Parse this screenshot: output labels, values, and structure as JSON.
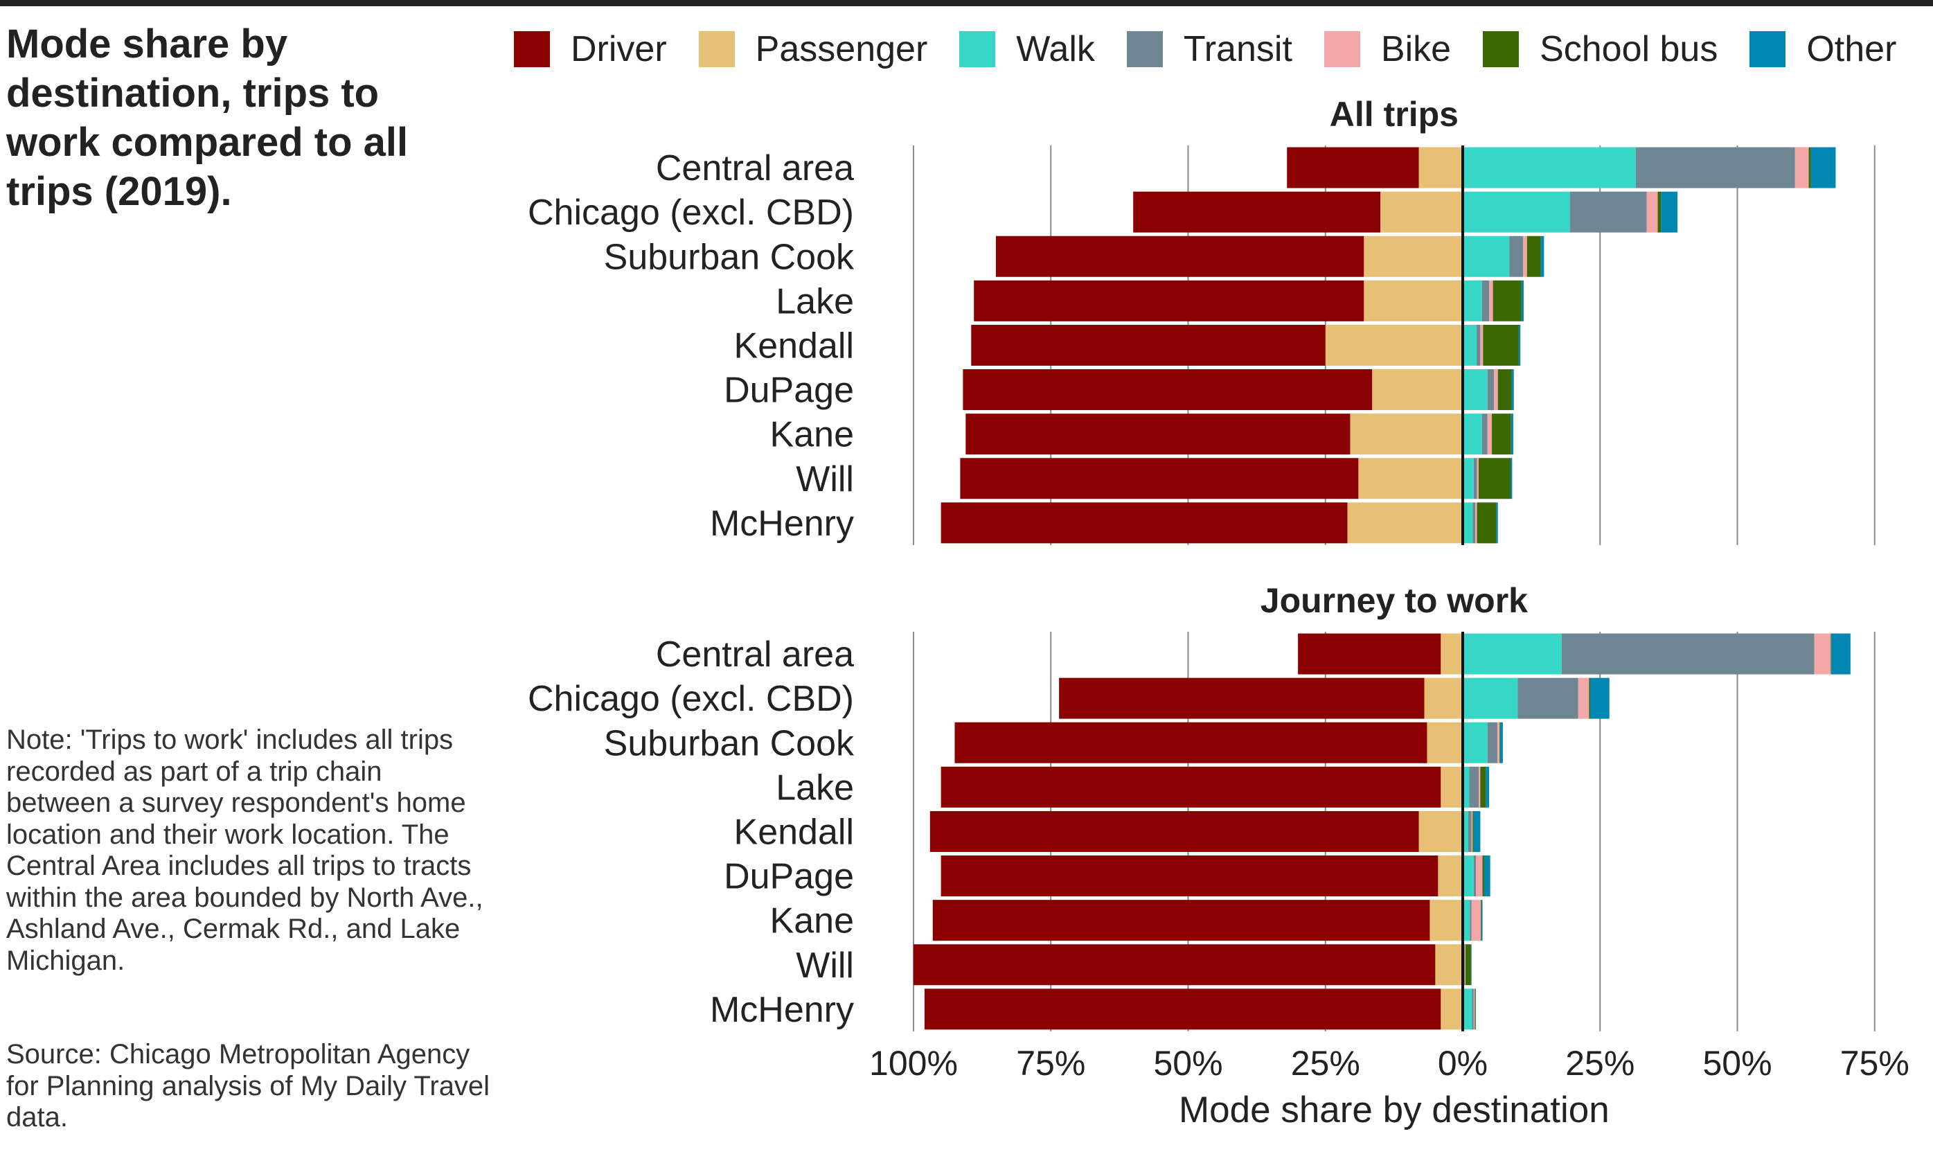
{
  "title": "Mode share by destination, trips to work compared to all trips (2019).",
  "note": "Note: 'Trips to work' includes all trips recorded as part of a trip chain between a survey respondent's home location and their work location. The Central Area includes all trips to tracts within the area bounded by North Ave., Ashland Ave., Cermak Rd., and Lake Michigan.",
  "source": "Source: Chicago Metropolitan Agency for Planning analysis of My Daily Travel data.",
  "chart_data": {
    "type": "bar",
    "orientation": "horizontal-diverging",
    "xlabel": "Mode share by destination",
    "xlim": [
      -1.0,
      0.75
    ],
    "xticks": [
      -1.0,
      -0.75,
      -0.5,
      -0.25,
      0,
      0.25,
      0.5,
      0.75
    ],
    "xtick_labels": [
      "100%",
      "75%",
      "50%",
      "25%",
      "0%",
      "25%",
      "50%",
      "75%"
    ],
    "grid": "vertical",
    "legend_position": "top",
    "categories": [
      "Central area",
      "Chicago (excl. CBD)",
      "Suburban Cook",
      "Lake",
      "Kendall",
      "DuPage",
      "Kane",
      "Will",
      "McHenry"
    ],
    "series": [
      {
        "name": "Driver",
        "color": "#8b0000",
        "side": "left"
      },
      {
        "name": "Passenger",
        "color": "#e7c075",
        "side": "left"
      },
      {
        "name": "Walk",
        "color": "#36d7c7",
        "side": "right"
      },
      {
        "name": "Transit",
        "color": "#6f8793",
        "side": "right"
      },
      {
        "name": "Bike",
        "color": "#f3a7a7",
        "side": "right"
      },
      {
        "name": "School bus",
        "color": "#3a6904",
        "side": "right"
      },
      {
        "name": "Other",
        "color": "#0087b1",
        "side": "right"
      }
    ],
    "panels": [
      {
        "title": "All trips",
        "values": {
          "Driver": [
            0.24,
            0.45,
            0.67,
            0.71,
            0.645,
            0.745,
            0.7,
            0.725,
            0.74
          ],
          "Passenger": [
            0.08,
            0.15,
            0.18,
            0.18,
            0.25,
            0.165,
            0.205,
            0.19,
            0.21
          ],
          "Walk": [
            0.315,
            0.195,
            0.085,
            0.035,
            0.025,
            0.045,
            0.035,
            0.02,
            0.018
          ],
          "Transit": [
            0.29,
            0.14,
            0.025,
            0.013,
            0.007,
            0.012,
            0.01,
            0.006,
            0.005
          ],
          "Bike": [
            0.025,
            0.02,
            0.007,
            0.007,
            0.005,
            0.007,
            0.008,
            0.003,
            0.003
          ],
          "School bus": [
            0.004,
            0.006,
            0.025,
            0.052,
            0.065,
            0.025,
            0.035,
            0.058,
            0.035
          ],
          "Other": [
            0.045,
            0.03,
            0.006,
            0.004,
            0.003,
            0.004,
            0.004,
            0.003,
            0.003
          ]
        }
      },
      {
        "title": "Journey to work",
        "values": {
          "Driver": [
            0.26,
            0.665,
            0.86,
            0.91,
            0.89,
            0.905,
            0.905,
            0.95,
            0.94
          ],
          "Passenger": [
            0.04,
            0.07,
            0.065,
            0.04,
            0.08,
            0.045,
            0.06,
            0.05,
            0.04
          ],
          "Walk": [
            0.18,
            0.1,
            0.045,
            0.012,
            0.01,
            0.02,
            0.013,
            0.002,
            0.017
          ],
          "Transit": [
            0.46,
            0.11,
            0.018,
            0.017,
            0.006,
            0.004,
            0.003,
            0.002,
            0.003
          ],
          "Bike": [
            0.03,
            0.02,
            0.004,
            0.003,
            0.002,
            0.012,
            0.017,
            0.001,
            0.002
          ],
          "School bus": [
            0.001,
            0.002,
            0.001,
            0.01,
            0.002,
            0.003,
            0.001,
            0.01,
            0.001
          ],
          "Other": [
            0.035,
            0.035,
            0.005,
            0.006,
            0.012,
            0.011,
            0.002,
            0.001,
            0.001
          ]
        }
      }
    ]
  }
}
